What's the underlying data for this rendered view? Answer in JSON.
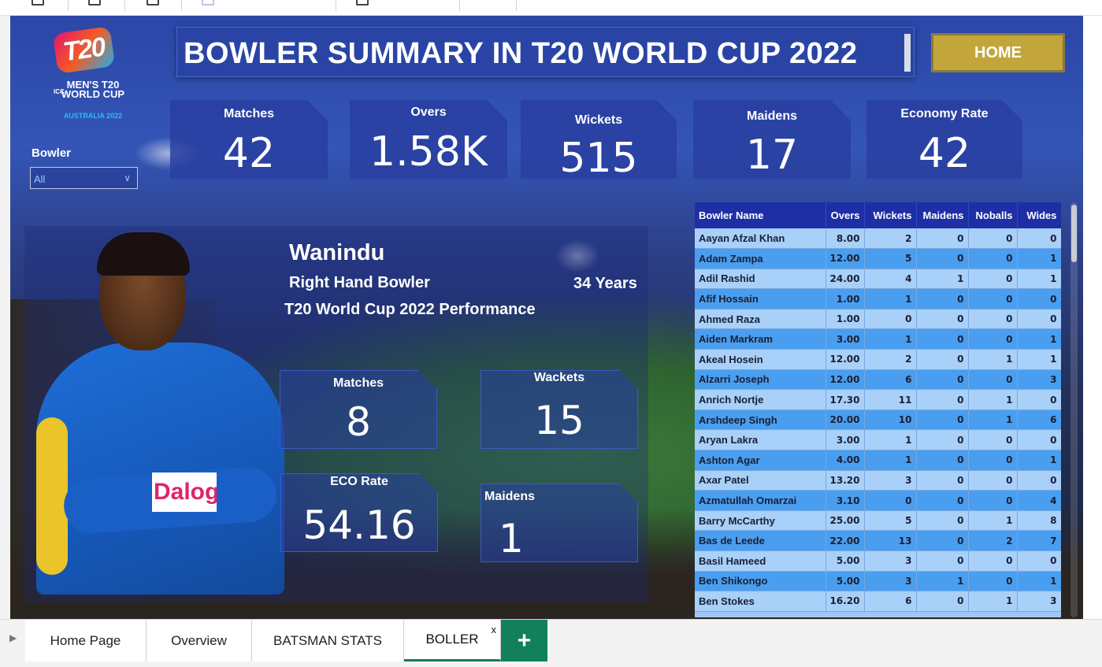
{
  "report": {
    "title": "BOWLER SUMMARY IN T20 WORLD CUP 2022",
    "home_label": "HOME"
  },
  "logo": {
    "mark": "T20",
    "icc": "ICC",
    "line1": "MEN'S T20",
    "line2": "WORLD CUP",
    "line3": "AUSTRALIA 2022"
  },
  "kpis": [
    {
      "label": "Matches",
      "value": "42"
    },
    {
      "label": "Overs",
      "value": "1.58K"
    },
    {
      "label": "Wickets",
      "value": "515"
    },
    {
      "label": "Maidens",
      "value": "17"
    },
    {
      "label": "Economy Rate",
      "value": "42"
    }
  ],
  "filter": {
    "label": "Bowler",
    "selected": "All"
  },
  "player": {
    "name": "Wanindu",
    "style": "Right Hand Bowler",
    "age": "34 Years",
    "performance_title": "T20 World Cup 2022 Performance",
    "sponsor": "Dalog",
    "cards": [
      {
        "label": "Matches",
        "value": "8"
      },
      {
        "label": "Wackets",
        "value": "15"
      },
      {
        "label": "ECO Rate",
        "value": "54.16"
      },
      {
        "label": "Maidens",
        "value": "1"
      }
    ]
  },
  "table": {
    "columns": [
      "Bowler Name",
      "Overs",
      "Wickets",
      "Maidens",
      "Noballs",
      "Wides"
    ],
    "rows": [
      [
        "Aayan Afzal Khan",
        "8.00",
        "2",
        "0",
        "0",
        "0"
      ],
      [
        "Adam Zampa",
        "12.00",
        "5",
        "0",
        "0",
        "1"
      ],
      [
        "Adil Rashid",
        "24.00",
        "4",
        "1",
        "0",
        "1"
      ],
      [
        "Afif Hossain",
        "1.00",
        "1",
        "0",
        "0",
        "0"
      ],
      [
        "Ahmed Raza",
        "1.00",
        "0",
        "0",
        "0",
        "0"
      ],
      [
        "Aiden Markram",
        "3.00",
        "1",
        "0",
        "0",
        "1"
      ],
      [
        "Akeal Hosein",
        "12.00",
        "2",
        "0",
        "1",
        "1"
      ],
      [
        "Alzarri Joseph",
        "12.00",
        "6",
        "0",
        "0",
        "3"
      ],
      [
        "Anrich Nortje",
        "17.30",
        "11",
        "0",
        "1",
        "0"
      ],
      [
        "Arshdeep Singh",
        "20.00",
        "10",
        "0",
        "1",
        "6"
      ],
      [
        "Aryan Lakra",
        "3.00",
        "1",
        "0",
        "0",
        "0"
      ],
      [
        "Ashton Agar",
        "4.00",
        "1",
        "0",
        "0",
        "1"
      ],
      [
        "Axar Patel",
        "13.20",
        "3",
        "0",
        "0",
        "0"
      ],
      [
        "Azmatullah Omarzai",
        "3.10",
        "0",
        "0",
        "0",
        "4"
      ],
      [
        "Barry McCarthy",
        "25.00",
        "5",
        "0",
        "1",
        "8"
      ],
      [
        "Bas de Leede",
        "22.00",
        "13",
        "0",
        "2",
        "7"
      ],
      [
        "Basil Hameed",
        "5.00",
        "3",
        "0",
        "0",
        "0"
      ],
      [
        "Ben Shikongo",
        "5.00",
        "3",
        "1",
        "0",
        "1"
      ],
      [
        "Ben Stokes",
        "16.20",
        "6",
        "0",
        "1",
        "3"
      ]
    ]
  },
  "tabs": {
    "items": [
      "Home Page",
      "Overview",
      "BATSMAN STATS",
      "BOLLER"
    ],
    "active_close": "x",
    "add": "+"
  },
  "colors": {
    "kpi_bg": "#283ea0",
    "home_btn": "#c2a63c",
    "table_header": "#1e2fa6",
    "row_light": "#a8d0f8",
    "row_dark": "#4a9ef0",
    "add_tab": "#12805b"
  },
  "icons": {
    "filter_chevron": "chevron-down-icon",
    "tab_scroll": "triangle-right-icon"
  }
}
